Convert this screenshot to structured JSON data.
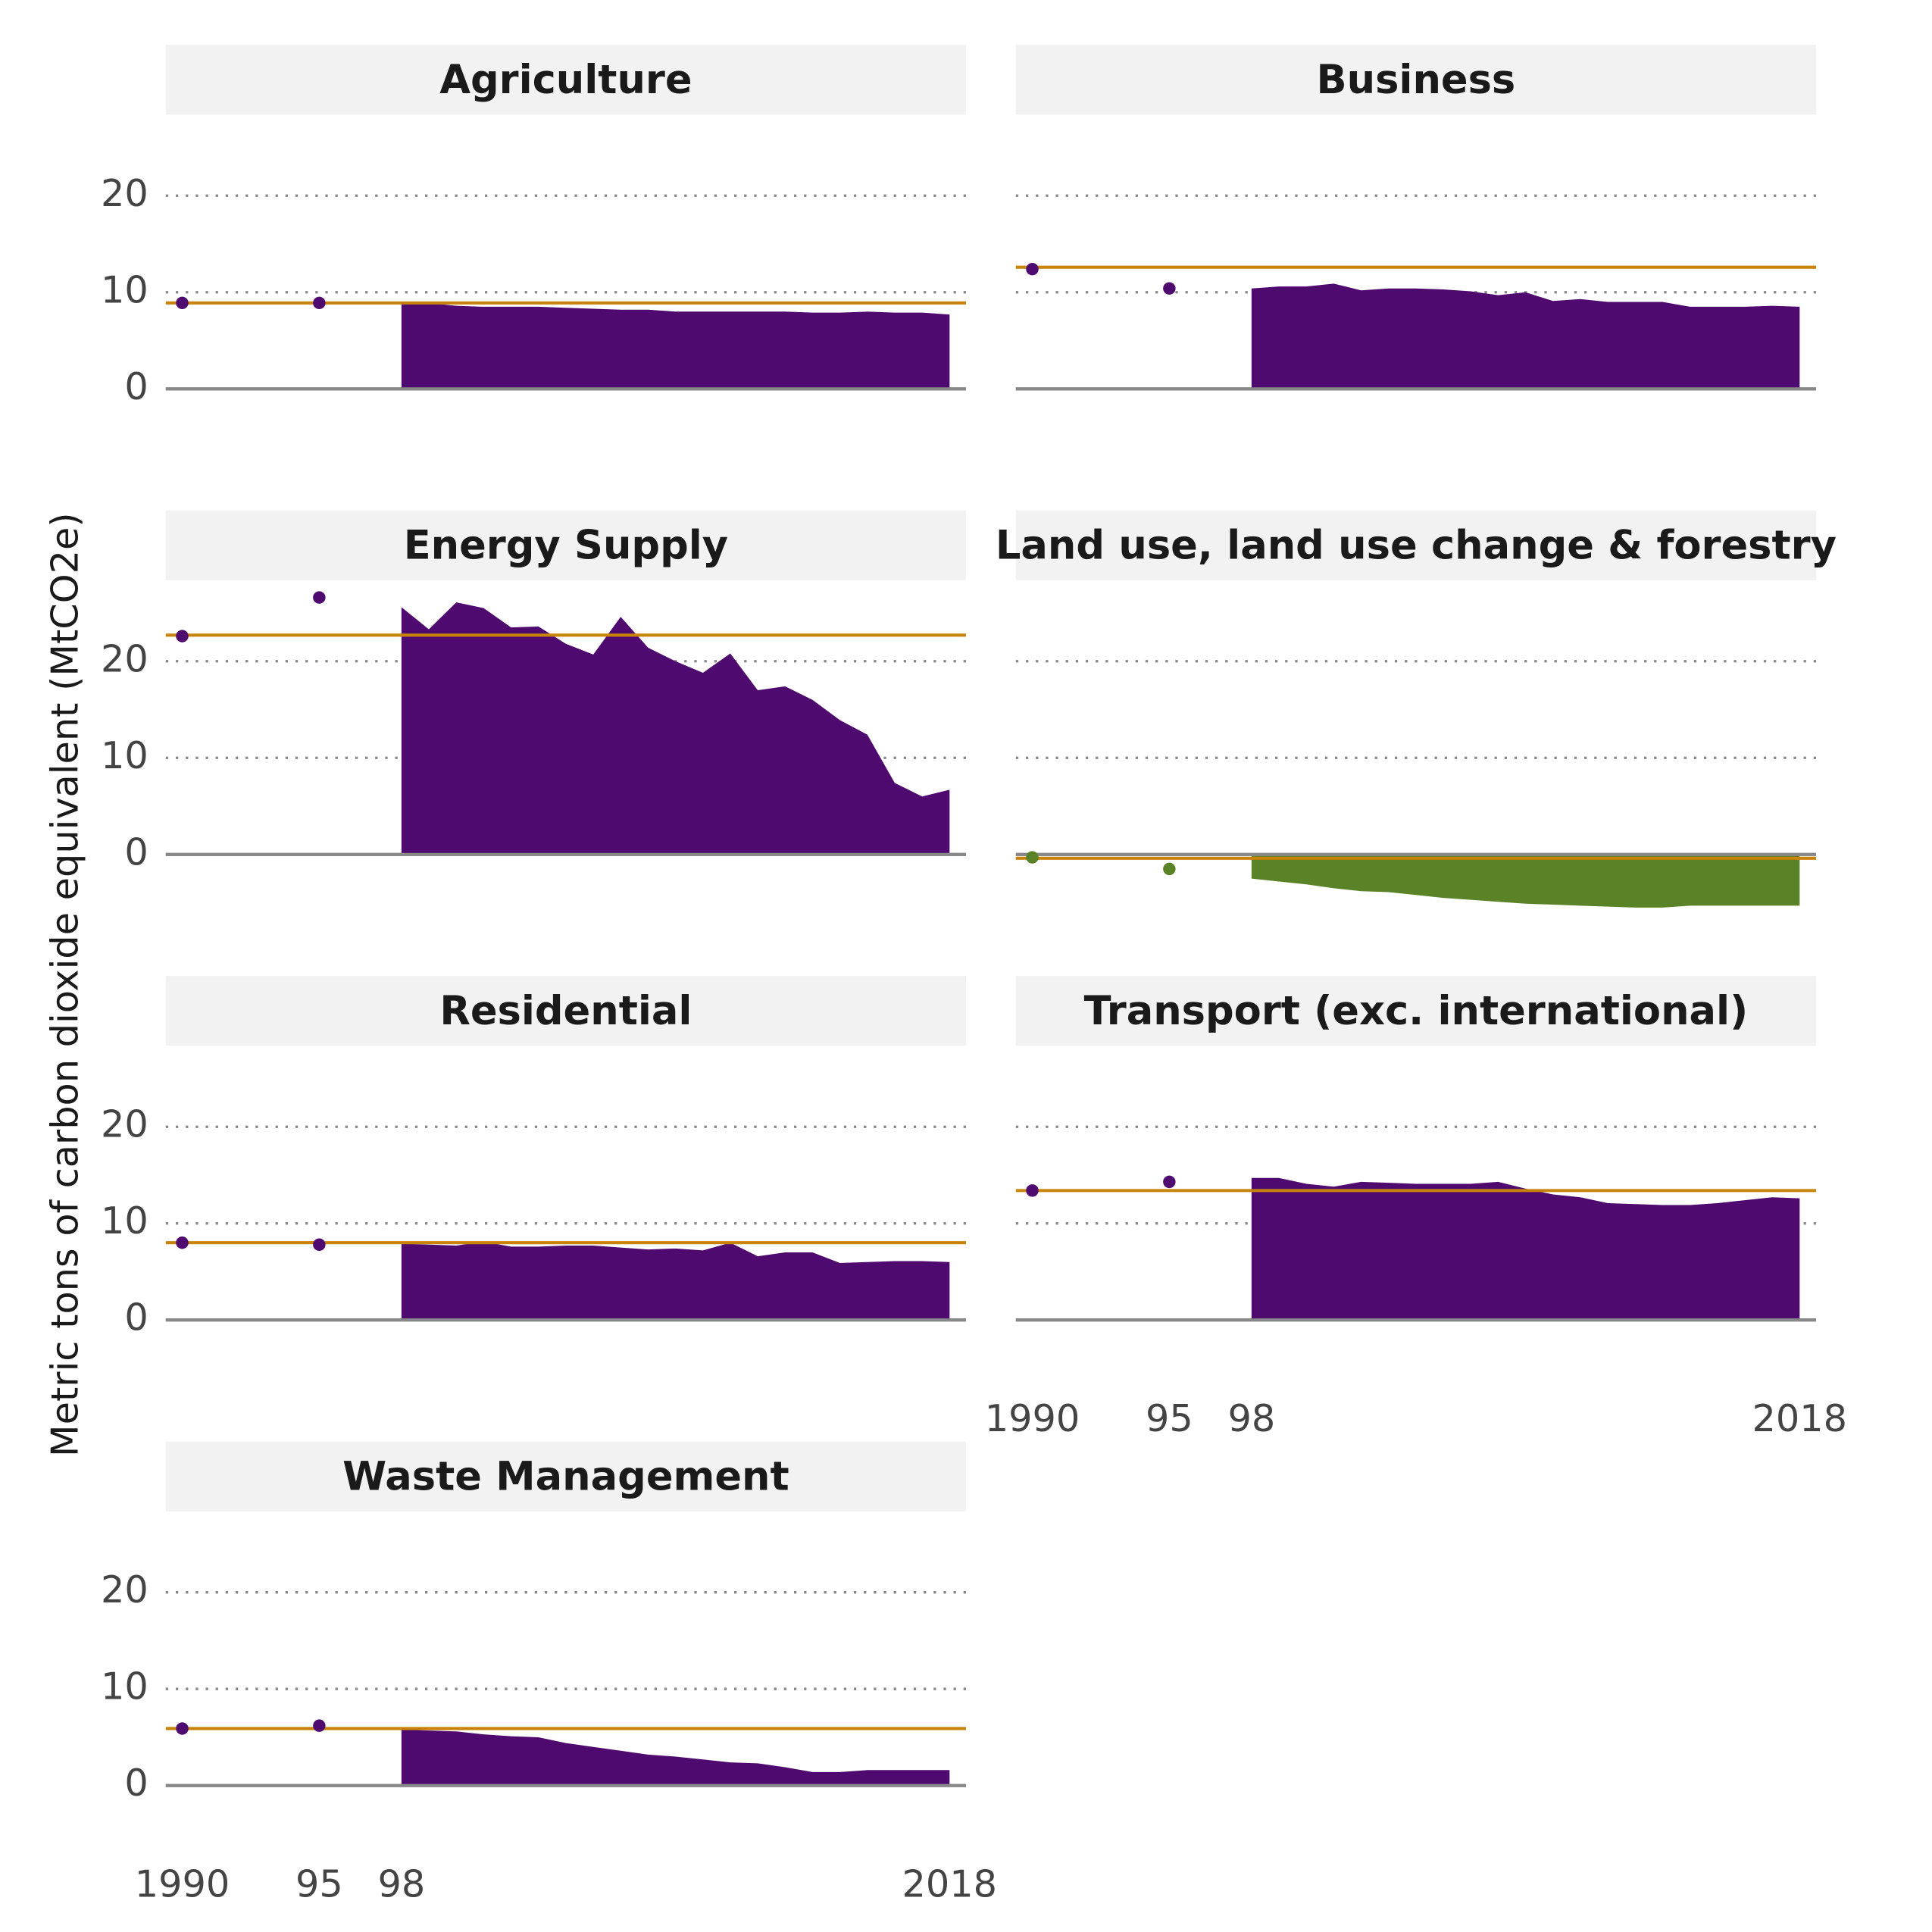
{
  "y_label": "Metric tons of carbon dioxide equivalent (MtCO2e)",
  "chart_data": [
    {
      "type": "area",
      "title": "Agriculture",
      "color": "#4f0a6f",
      "baseline_color": "#c8830a",
      "baseline": 8.9,
      "points": {
        "x": [
          1990,
          1995
        ],
        "values": [
          8.9,
          8.9
        ]
      },
      "x": [
        1998,
        1999,
        2000,
        2001,
        2002,
        2003,
        2004,
        2005,
        2006,
        2007,
        2008,
        2009,
        2010,
        2011,
        2012,
        2013,
        2014,
        2015,
        2016,
        2017,
        2018
      ],
      "values": [
        9.0,
        8.9,
        8.6,
        8.5,
        8.5,
        8.5,
        8.4,
        8.3,
        8.2,
        8.2,
        8.0,
        8.0,
        8.0,
        8.0,
        8.0,
        7.9,
        7.9,
        8.0,
        7.9,
        7.9,
        7.7
      ],
      "xlim": [
        1989.4,
        2018.6
      ],
      "ylim": [
        -6,
        28
      ],
      "yticks": [
        0,
        10,
        20
      ],
      "grid": true
    },
    {
      "type": "area",
      "title": "Business",
      "color": "#4f0a6f",
      "baseline_color": "#c8830a",
      "baseline": 12.6,
      "points": {
        "x": [
          1990,
          1995
        ],
        "values": [
          12.4,
          10.4
        ]
      },
      "x": [
        1998,
        1999,
        2000,
        2001,
        2002,
        2003,
        2004,
        2005,
        2006,
        2007,
        2008,
        2009,
        2010,
        2011,
        2012,
        2013,
        2014,
        2015,
        2016,
        2017,
        2018
      ],
      "values": [
        10.4,
        10.6,
        10.6,
        10.9,
        10.2,
        10.4,
        10.4,
        10.3,
        10.1,
        9.7,
        10.0,
        9.1,
        9.3,
        9.0,
        9.0,
        9.0,
        8.5,
        8.5,
        8.5,
        8.6,
        8.5
      ],
      "xlim": [
        1989.4,
        2018.6
      ],
      "ylim": [
        -6,
        28
      ],
      "yticks": [
        0,
        10,
        20
      ],
      "grid": true
    },
    {
      "type": "area",
      "title": "Energy Supply",
      "color": "#4f0a6f",
      "baseline_color": "#c8830a",
      "baseline": 22.7,
      "points": {
        "x": [
          1990,
          1995
        ],
        "values": [
          22.6,
          26.6
        ]
      },
      "x": [
        1998,
        1999,
        2000,
        2001,
        2002,
        2003,
        2004,
        2005,
        2006,
        2007,
        2008,
        2009,
        2010,
        2011,
        2012,
        2013,
        2014,
        2015,
        2016,
        2017,
        2018
      ],
      "values": [
        25.6,
        23.3,
        26.1,
        25.5,
        23.5,
        23.6,
        21.8,
        20.7,
        24.6,
        21.4,
        20.0,
        18.8,
        20.8,
        17.0,
        17.4,
        16.0,
        13.9,
        12.4,
        7.4,
        6.0,
        6.7
      ],
      "xlim": [
        1989.4,
        2018.6
      ],
      "ylim": [
        -6,
        28
      ],
      "yticks": [
        0,
        10,
        20
      ],
      "grid": true
    },
    {
      "type": "area",
      "title": "Land use, land use change & forestry",
      "color": "#5a8226",
      "baseline_color": "#c8830a",
      "baseline": -0.4,
      "points": {
        "x": [
          1990,
          1995
        ],
        "values": [
          -0.3,
          -1.5
        ]
      },
      "x": [
        1998,
        1999,
        2000,
        2001,
        2002,
        2003,
        2004,
        2005,
        2006,
        2007,
        2008,
        2009,
        2010,
        2011,
        2012,
        2013,
        2014,
        2015,
        2016,
        2017,
        2018
      ],
      "values": [
        -2.5,
        -2.8,
        -3.1,
        -3.5,
        -3.8,
        -3.9,
        -4.2,
        -4.5,
        -4.7,
        -4.9,
        -5.1,
        -5.2,
        -5.3,
        -5.4,
        -5.5,
        -5.5,
        -5.3,
        -5.3,
        -5.3,
        -5.3,
        -5.3
      ],
      "xlim": [
        1989.4,
        2018.6
      ],
      "ylim": [
        -6,
        28
      ],
      "yticks": [
        0,
        10,
        20
      ],
      "grid": true
    },
    {
      "type": "area",
      "title": "Residential",
      "color": "#4f0a6f",
      "baseline_color": "#c8830a",
      "baseline": 8.0,
      "points": {
        "x": [
          1990,
          1995
        ],
        "values": [
          8.0,
          7.8
        ]
      },
      "x": [
        1998,
        1999,
        2000,
        2001,
        2002,
        2003,
        2004,
        2005,
        2006,
        2007,
        2008,
        2009,
        2010,
        2011,
        2012,
        2013,
        2014,
        2015,
        2016,
        2017,
        2018
      ],
      "values": [
        7.9,
        7.8,
        7.7,
        8.1,
        7.6,
        7.6,
        7.7,
        7.7,
        7.5,
        7.3,
        7.4,
        7.2,
        8.0,
        6.6,
        7.0,
        7.0,
        5.9,
        6.0,
        6.1,
        6.1,
        6.0
      ],
      "xlim": [
        1989.4,
        2018.6
      ],
      "ylim": [
        -6,
        28
      ],
      "yticks": [
        0,
        10,
        20
      ],
      "grid": true
    },
    {
      "type": "area",
      "title": "Transport (exc. international)",
      "color": "#4f0a6f",
      "baseline_color": "#c8830a",
      "baseline": 13.4,
      "points": {
        "x": [
          1990,
          1995
        ],
        "values": [
          13.4,
          14.3
        ]
      },
      "x": [
        1998,
        1999,
        2000,
        2001,
        2002,
        2003,
        2004,
        2005,
        2006,
        2007,
        2008,
        2009,
        2010,
        2011,
        2012,
        2013,
        2014,
        2015,
        2016,
        2017,
        2018
      ],
      "values": [
        14.7,
        14.7,
        14.1,
        13.8,
        14.3,
        14.2,
        14.1,
        14.1,
        14.1,
        14.3,
        13.6,
        13.0,
        12.7,
        12.1,
        12.0,
        11.9,
        11.9,
        12.1,
        12.4,
        12.7,
        12.6
      ],
      "xlim": [
        1989.4,
        2018.6
      ],
      "ylim": [
        -6,
        28
      ],
      "yticks": [
        0,
        10,
        20
      ],
      "grid": true,
      "xticks": [
        1990,
        {
          "value": 1995,
          "label": "95"
        },
        {
          "value": 1998,
          "label": "98"
        },
        2018
      ]
    },
    {
      "type": "area",
      "title": "Waste Management",
      "color": "#4f0a6f",
      "baseline_color": "#c8830a",
      "baseline": 5.9,
      "points": {
        "x": [
          1990,
          1995
        ],
        "values": [
          5.9,
          6.2
        ]
      },
      "x": [
        1998,
        1999,
        2000,
        2001,
        2002,
        2003,
        2004,
        2005,
        2006,
        2007,
        2008,
        2009,
        2010,
        2011,
        2012,
        2013,
        2014,
        2015,
        2016,
        2017,
        2018
      ],
      "values": [
        5.8,
        5.7,
        5.6,
        5.3,
        5.1,
        5.0,
        4.4,
        4.0,
        3.6,
        3.2,
        3.0,
        2.7,
        2.4,
        2.3,
        1.9,
        1.4,
        1.4,
        1.6,
        1.6,
        1.6,
        1.6
      ],
      "xlim": [
        1989.4,
        2018.6
      ],
      "ylim": [
        -6,
        28
      ],
      "yticks": [
        0,
        10,
        20
      ],
      "grid": true,
      "xticks": [
        1990,
        {
          "value": 1995,
          "label": "95"
        },
        {
          "value": 1998,
          "label": "98"
        },
        2018
      ]
    }
  ]
}
